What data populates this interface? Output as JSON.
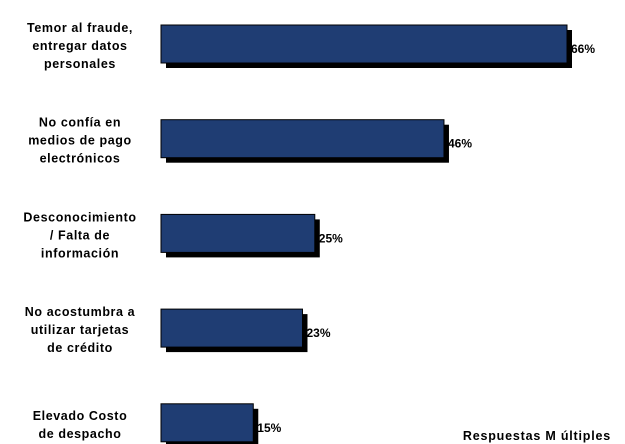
{
  "chart_data": {
    "type": "bar",
    "orientation": "horizontal",
    "categories": [
      [
        "Temor al fraude,",
        "entregar datos",
        "personales"
      ],
      [
        "No confía en",
        "medios de pago",
        "electrónicos"
      ],
      [
        "Desconocimiento",
        "/ Falta de",
        "información"
      ],
      [
        "No acostumbra a",
        "utilizar tarjetas",
        "de crédito"
      ],
      [
        "Elevado Costo",
        "de despacho"
      ]
    ],
    "values": [
      66,
      46,
      25,
      23,
      15
    ],
    "value_labels": [
      "66%",
      "46%",
      "25%",
      "23%",
      "15%"
    ],
    "xlim": [
      0,
      70
    ],
    "grid": false,
    "legend": "none",
    "bar_color": "#1f3d73",
    "bar_edge_color": "#000000",
    "shadow_color": "#000000",
    "footnote": "Respuestas M últiples"
  }
}
